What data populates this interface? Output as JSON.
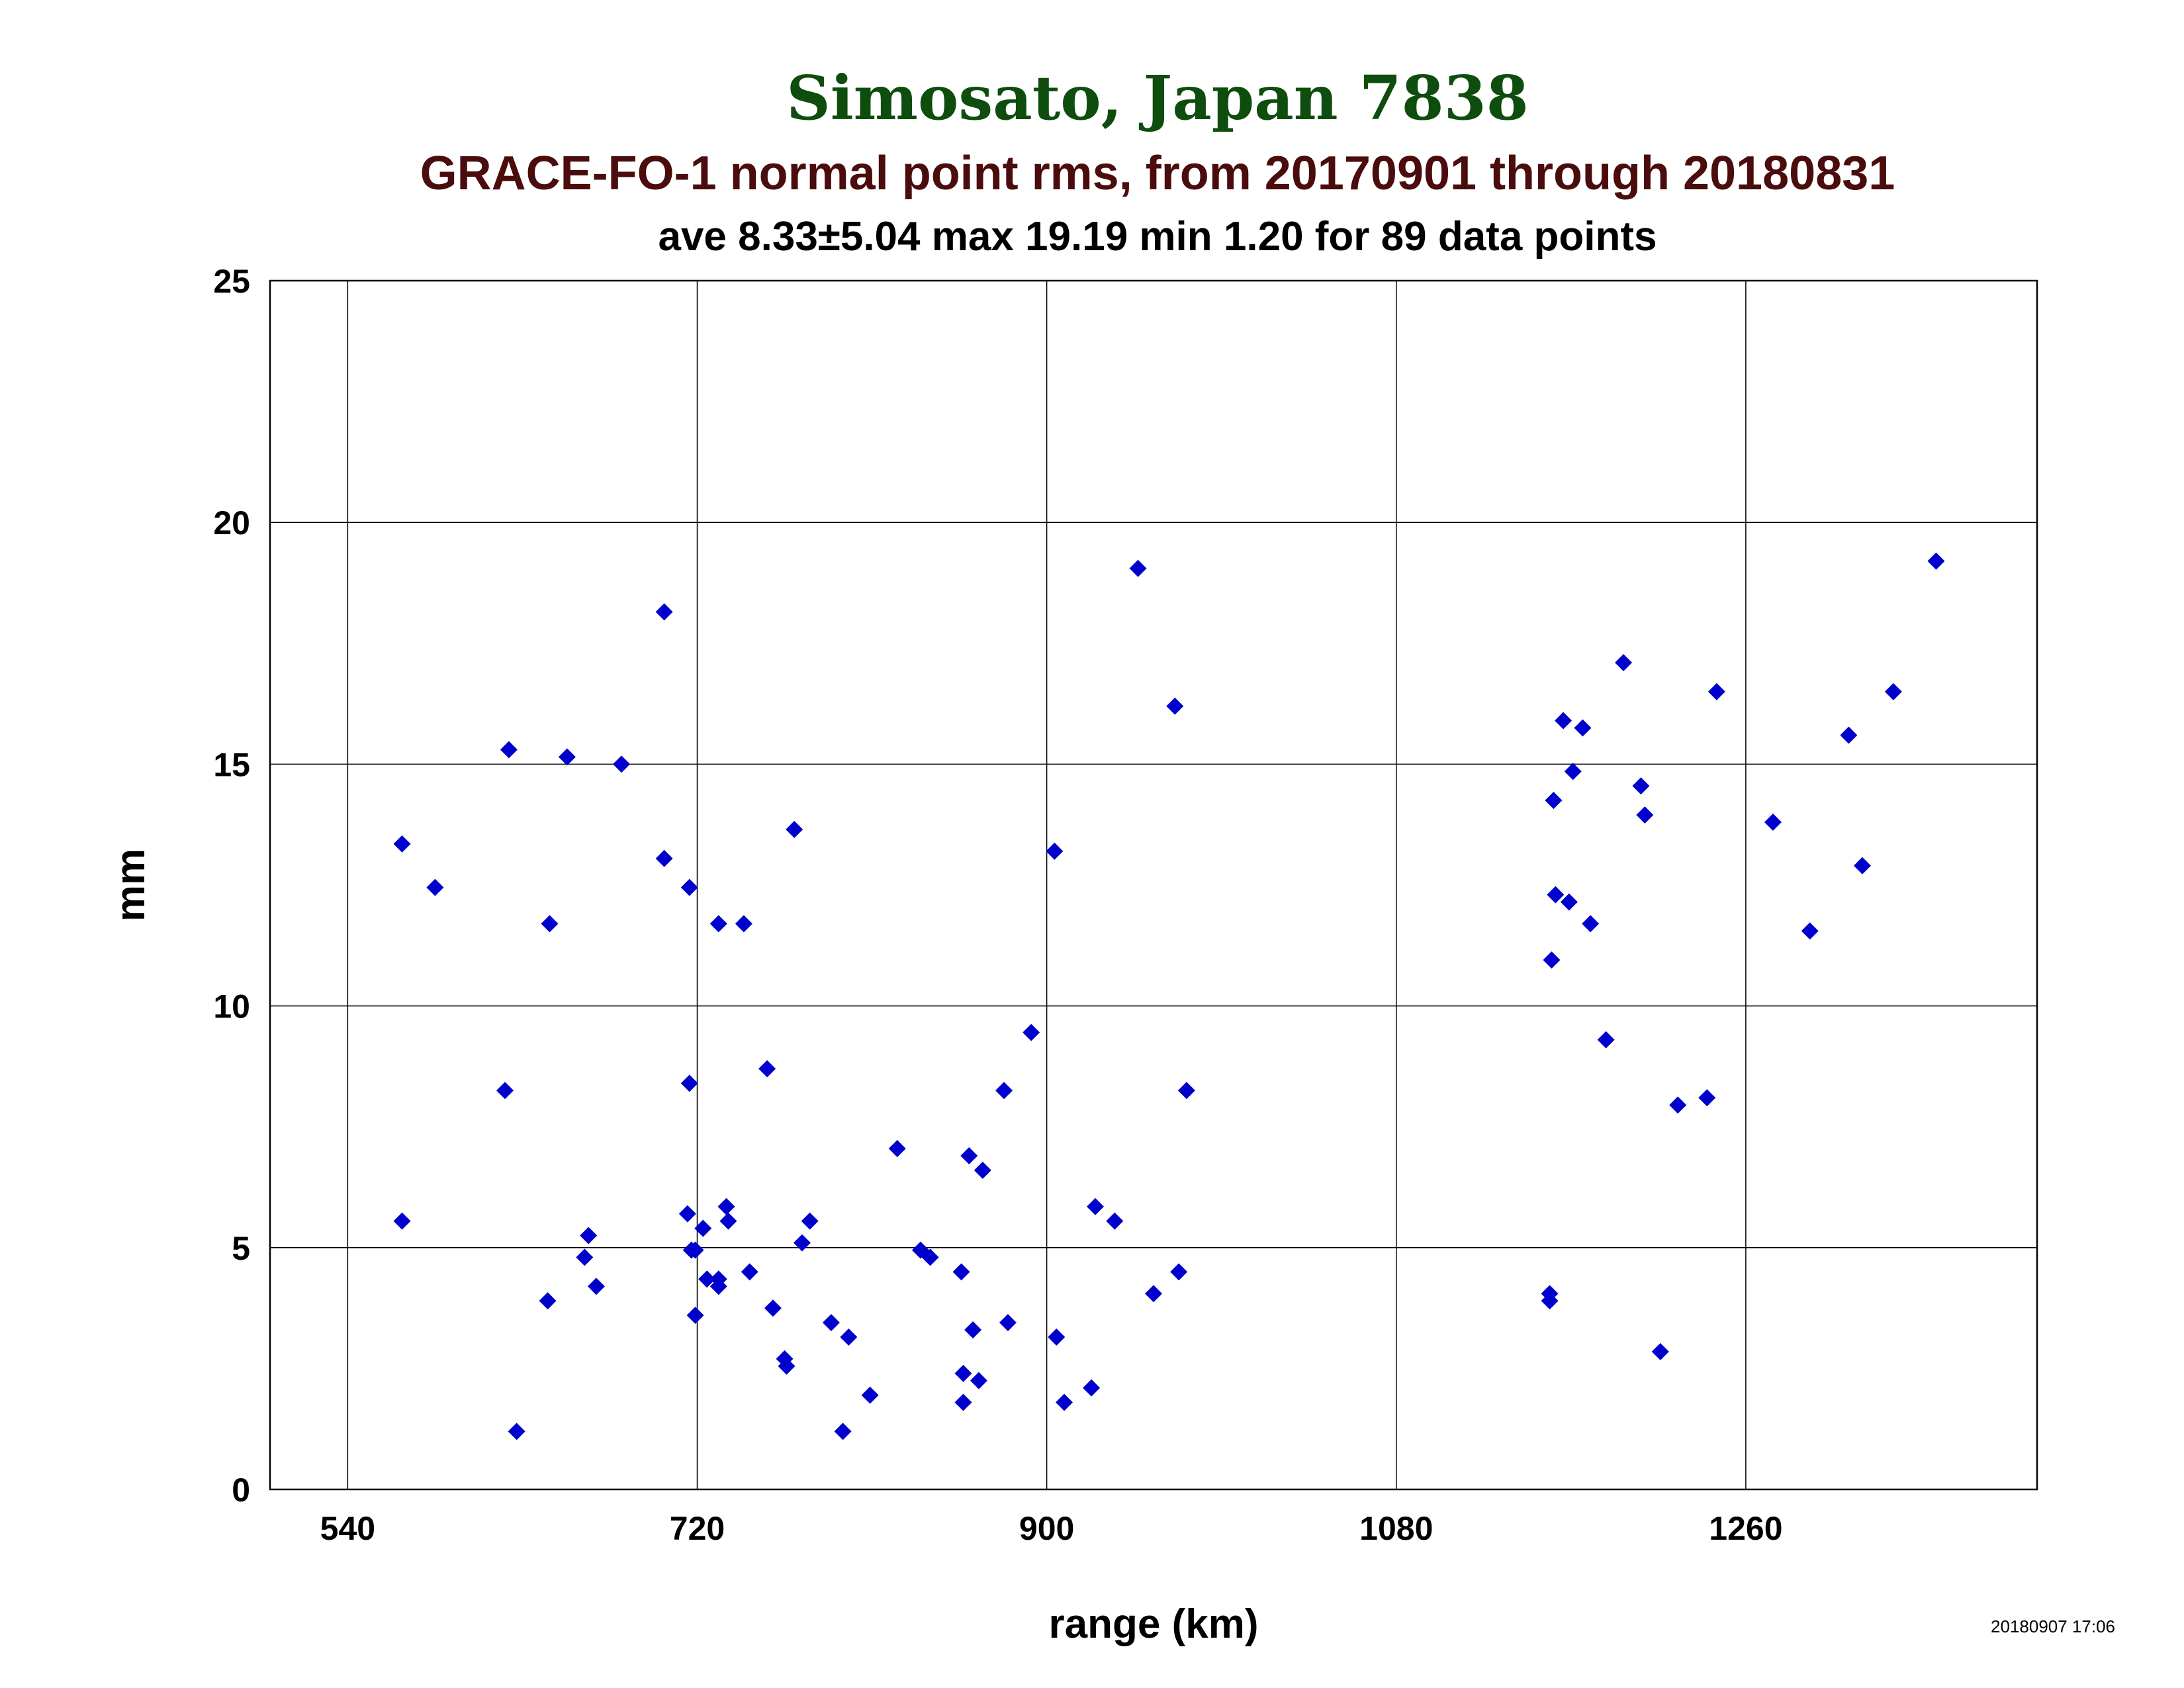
{
  "colors": {
    "title_main": "#0e4d0e",
    "title_sub": "#4a0c0c",
    "title_stats": "#000000",
    "marker": "#0000cc"
  },
  "chart_data": {
    "type": "scatter",
    "title": "Simosato, Japan 7838",
    "subtitle": "GRACE-FO-1 normal point rms, from 20170901 through 20180831",
    "stats_line": "ave 8.33±5.04 max 19.19 min 1.20 for 89 data points",
    "xlabel": "range (km)",
    "ylabel": "mm",
    "timestamp": "20180907 17:06",
    "xlim": [
      500,
      1410
    ],
    "ylim": [
      0,
      25
    ],
    "xticks": [
      540,
      720,
      900,
      1080,
      1260
    ],
    "yticks": [
      0,
      5,
      10,
      15,
      20,
      25
    ],
    "grid": true,
    "marker": "diamond",
    "points": [
      [
        568,
        13.35
      ],
      [
        568,
        5.55
      ],
      [
        585,
        12.45
      ],
      [
        621,
        8.25
      ],
      [
        623,
        15.3
      ],
      [
        627,
        1.2
      ],
      [
        643,
        3.9
      ],
      [
        644,
        11.7
      ],
      [
        653,
        15.15
      ],
      [
        662,
        4.8
      ],
      [
        664,
        5.25
      ],
      [
        668,
        4.2
      ],
      [
        681,
        15.0
      ],
      [
        703,
        18.15
      ],
      [
        703,
        13.05
      ],
      [
        715,
        5.7
      ],
      [
        716,
        8.4
      ],
      [
        716,
        12.45
      ],
      [
        717,
        4.95
      ],
      [
        719,
        4.95
      ],
      [
        719,
        3.6
      ],
      [
        723,
        5.4
      ],
      [
        725,
        4.35
      ],
      [
        731,
        4.35
      ],
      [
        731,
        4.2
      ],
      [
        731,
        11.7
      ],
      [
        735,
        5.85
      ],
      [
        736,
        5.55
      ],
      [
        744,
        11.7
      ],
      [
        747,
        4.5
      ],
      [
        756,
        8.7
      ],
      [
        759,
        3.75
      ],
      [
        765,
        2.7
      ],
      [
        766,
        2.55
      ],
      [
        770,
        13.65
      ],
      [
        774,
        5.1
      ],
      [
        778,
        5.55
      ],
      [
        789,
        3.45
      ],
      [
        795,
        1.2
      ],
      [
        798,
        3.15
      ],
      [
        809,
        1.95
      ],
      [
        823,
        7.05
      ],
      [
        835,
        4.95
      ],
      [
        840,
        4.8
      ],
      [
        856,
        4.5
      ],
      [
        857,
        2.4
      ],
      [
        857,
        1.8
      ],
      [
        860,
        6.9
      ],
      [
        862,
        3.3
      ],
      [
        865,
        2.25
      ],
      [
        867,
        6.6
      ],
      [
        878,
        8.25
      ],
      [
        880,
        3.45
      ],
      [
        892,
        9.45
      ],
      [
        904,
        13.2
      ],
      [
        905,
        3.15
      ],
      [
        909,
        1.8
      ],
      [
        923,
        2.1
      ],
      [
        925,
        5.85
      ],
      [
        935,
        5.55
      ],
      [
        947,
        19.05
      ],
      [
        955,
        4.05
      ],
      [
        966,
        16.2
      ],
      [
        968,
        4.5
      ],
      [
        972,
        8.25
      ],
      [
        1159,
        4.05
      ],
      [
        1159,
        3.9
      ],
      [
        1160,
        10.95
      ],
      [
        1161,
        14.25
      ],
      [
        1162,
        12.3
      ],
      [
        1166,
        15.9
      ],
      [
        1169,
        12.15
      ],
      [
        1171,
        14.85
      ],
      [
        1176,
        15.75
      ],
      [
        1180,
        11.7
      ],
      [
        1188,
        9.3
      ],
      [
        1197,
        17.1
      ],
      [
        1206,
        14.55
      ],
      [
        1208,
        13.95
      ],
      [
        1216,
        2.85
      ],
      [
        1225,
        7.95
      ],
      [
        1240,
        8.1
      ],
      [
        1245,
        16.5
      ],
      [
        1274,
        13.8
      ],
      [
        1293,
        11.55
      ],
      [
        1313,
        15.6
      ],
      [
        1320,
        12.9
      ],
      [
        1336,
        16.5
      ],
      [
        1358,
        19.2
      ]
    ]
  }
}
